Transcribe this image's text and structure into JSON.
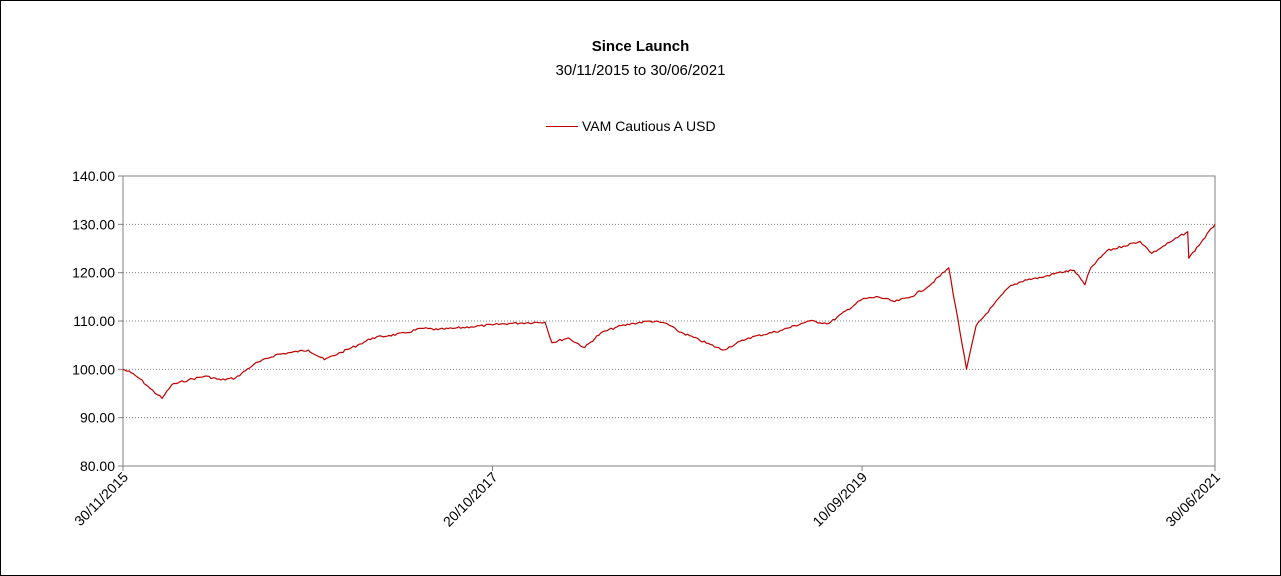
{
  "colors": {
    "series": "#c00000",
    "grid": "#808080",
    "axis": "#808080"
  },
  "chart_data": {
    "type": "line",
    "title": "Since Launch",
    "subtitle": "30/11/2015 to 30/06/2021",
    "xlabel": "",
    "ylabel": "",
    "ylim": [
      80,
      140
    ],
    "yticks": [
      "80.00",
      "90.00",
      "100.00",
      "110.00",
      "120.00",
      "130.00",
      "140.00"
    ],
    "xlim": [
      "30/11/2015",
      "30/06/2021"
    ],
    "xtick_labels": [
      "30/11/2015",
      "20/10/2017",
      "10/09/2019",
      "30/06/2021"
    ],
    "grid": true,
    "legend_position": "top-center",
    "series": [
      {
        "name": "VAM Cautious A USD",
        "x": [
          "30/11/2015",
          "15/12/2015",
          "01/01/2016",
          "20/01/2016",
          "11/02/2016",
          "29/02/2016",
          "31/03/2016",
          "01/05/2016",
          "31/05/2016",
          "27/06/2016",
          "31/07/2016",
          "10/09/2016",
          "10/10/2016",
          "10/11/2016",
          "10/12/2016",
          "10/01/2017",
          "10/02/2017",
          "10/03/2017",
          "10/04/2017",
          "10/05/2017",
          "10/06/2017",
          "10/07/2017",
          "10/08/2017",
          "10/09/2017",
          "20/10/2017",
          "20/11/2017",
          "26/01/2018",
          "08/02/2018",
          "10/03/2018",
          "10/04/2018",
          "10/05/2018",
          "10/06/2018",
          "10/07/2018",
          "10/08/2018",
          "10/09/2018",
          "30/09/2018",
          "24/12/2018",
          "10/02/2019",
          "10/04/2019",
          "03/06/2019",
          "10/07/2019",
          "10/09/2019",
          "10/10/2019",
          "10/11/2019",
          "10/12/2019",
          "10/01/2020",
          "19/02/2020",
          "23/03/2020",
          "10/04/2020",
          "10/05/2020",
          "10/06/2020",
          "10/07/2020",
          "10/08/2020",
          "10/09/2020",
          "10/10/2020",
          "30/10/2020",
          "10/11/2020",
          "10/12/2020",
          "10/01/2021",
          "10/02/2021",
          "04/03/2021",
          "10/04/2021",
          "10/05/2021",
          "12/05/2021",
          "30/06/2021"
        ],
        "values": [
          100.0,
          99.3,
          98.0,
          96.0,
          94.0,
          96.8,
          97.8,
          98.6,
          97.8,
          98.2,
          101.0,
          103.0,
          103.5,
          104.0,
          102.0,
          103.5,
          105.0,
          106.5,
          107.0,
          107.5,
          108.5,
          108.2,
          108.5,
          108.8,
          109.2,
          109.5,
          109.8,
          105.5,
          106.5,
          104.5,
          107.5,
          108.8,
          109.5,
          110.0,
          109.5,
          108.0,
          104.0,
          106.5,
          108.0,
          110.0,
          109.5,
          114.5,
          115.0,
          114.0,
          115.0,
          117.0,
          121.0,
          100.0,
          109.0,
          113.0,
          117.0,
          118.5,
          119.0,
          120.0,
          120.5,
          117.5,
          121.0,
          124.5,
          125.5,
          126.5,
          124.0,
          126.5,
          128.5,
          123.0,
          130.0
        ]
      }
    ]
  }
}
